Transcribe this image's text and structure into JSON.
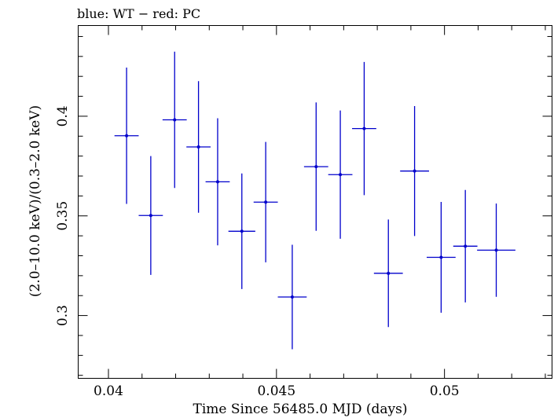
{
  "chart_data": {
    "type": "scatter",
    "title": "blue: WT − red: PC",
    "xlabel": "Time Since 56485.0 MJD (days)",
    "ylabel": "(2.0–10.0 keV)/(0.3–2.0 keV)",
    "xlim": [
      0.0391,
      0.0532
    ],
    "ylim": [
      0.2685,
      0.4455
    ],
    "x_ticks": [
      {
        "value": 0.04,
        "label": "0.04"
      },
      {
        "value": 0.045,
        "label": "0.045"
      },
      {
        "value": 0.05,
        "label": "0.05"
      }
    ],
    "y_ticks": [
      {
        "value": 0.3,
        "label": "0.3"
      },
      {
        "value": 0.35,
        "label": "0.35"
      },
      {
        "value": 0.4,
        "label": "0.4"
      }
    ],
    "grid": false,
    "series": [
      {
        "name": "WT",
        "color": "#0000cc",
        "points": [
          {
            "x": 0.04054,
            "y": 0.3902,
            "x_err": 0.00036,
            "y_err": 0.0342
          },
          {
            "x": 0.04126,
            "y": 0.3502,
            "x_err": 0.00036,
            "y_err": 0.0298
          },
          {
            "x": 0.04197,
            "y": 0.3982,
            "x_err": 0.00036,
            "y_err": 0.0342
          },
          {
            "x": 0.04268,
            "y": 0.3846,
            "x_err": 0.00036,
            "y_err": 0.033
          },
          {
            "x": 0.04325,
            "y": 0.3671,
            "x_err": 0.00036,
            "y_err": 0.0319
          },
          {
            "x": 0.04397,
            "y": 0.3423,
            "x_err": 0.0004,
            "y_err": 0.029
          },
          {
            "x": 0.04468,
            "y": 0.3569,
            "x_err": 0.00036,
            "y_err": 0.0302
          },
          {
            "x": 0.04547,
            "y": 0.3093,
            "x_err": 0.00043,
            "y_err": 0.0262
          },
          {
            "x": 0.04618,
            "y": 0.3747,
            "x_err": 0.00036,
            "y_err": 0.0322
          },
          {
            "x": 0.0469,
            "y": 0.3707,
            "x_err": 0.00036,
            "y_err": 0.0322
          },
          {
            "x": 0.04761,
            "y": 0.3938,
            "x_err": 0.00036,
            "y_err": 0.0334
          },
          {
            "x": 0.04833,
            "y": 0.3212,
            "x_err": 0.00043,
            "y_err": 0.027
          },
          {
            "x": 0.04911,
            "y": 0.3725,
            "x_err": 0.00043,
            "y_err": 0.0326
          },
          {
            "x": 0.0499,
            "y": 0.3292,
            "x_err": 0.00043,
            "y_err": 0.0278
          },
          {
            "x": 0.05062,
            "y": 0.3348,
            "x_err": 0.00036,
            "y_err": 0.0282
          },
          {
            "x": 0.05154,
            "y": 0.3328,
            "x_err": 0.00057,
            "y_err": 0.0234
          }
        ]
      }
    ]
  }
}
